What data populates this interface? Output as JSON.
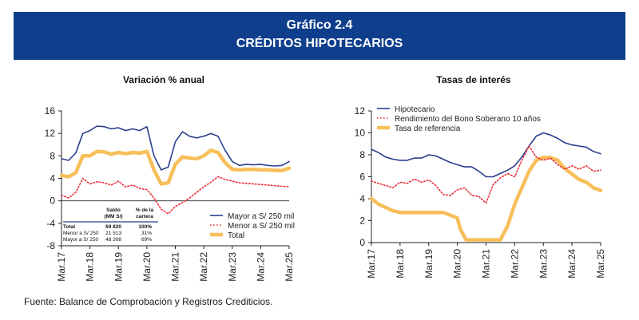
{
  "header": {
    "title_line1": "Gráfico 2.4",
    "title_line2": "CRÉDITOS HIPOTECARIOS"
  },
  "source": "Fuente: Balance de Comprobación y Registros Crediticios.",
  "colors": {
    "banner": "#0f3f8c",
    "blue": "#2a3f8f",
    "red": "#e8323c",
    "orange": "#f7bf5b"
  },
  "chart_data": [
    {
      "type": "line",
      "title": "Variación % anual",
      "xlabel": "",
      "ylabel": "",
      "ylim": [
        -8,
        16
      ],
      "yticks": [
        -8,
        -4,
        0,
        4,
        8,
        12,
        16
      ],
      "x_range": [
        2017.0,
        2025.0
      ],
      "xticks": [
        {
          "label": "Mar.17",
          "x": 2017.0
        },
        {
          "label": "Mar.18",
          "x": 2018.0
        },
        {
          "label": "Mar.19",
          "x": 2019.0
        },
        {
          "label": "Mar.20",
          "x": 2020.0
        },
        {
          "label": "Mar.21",
          "x": 2021.0
        },
        {
          "label": "Mar.22",
          "x": 2022.0
        },
        {
          "label": "Mar.23",
          "x": 2023.0
        },
        {
          "label": "Mar.24",
          "x": 2024.0
        },
        {
          "label": "Mar.25",
          "x": 2025.0
        }
      ],
      "legend_position": "bottom-right",
      "series": [
        {
          "name": "Mayor a S/ 250 mil",
          "color": "#2a3f8f",
          "style": "solid",
          "points": [
            [
              2017.0,
              7.5
            ],
            [
              2017.25,
              7.2
            ],
            [
              2017.5,
              8.5
            ],
            [
              2017.75,
              12.0
            ],
            [
              2018.0,
              12.5
            ],
            [
              2018.25,
              13.3
            ],
            [
              2018.5,
              13.2
            ],
            [
              2018.75,
              12.8
            ],
            [
              2019.0,
              13.0
            ],
            [
              2019.25,
              12.5
            ],
            [
              2019.5,
              12.8
            ],
            [
              2019.75,
              12.5
            ],
            [
              2020.0,
              13.2
            ],
            [
              2020.25,
              8.0
            ],
            [
              2020.5,
              5.5
            ],
            [
              2020.75,
              6.0
            ],
            [
              2021.0,
              10.5
            ],
            [
              2021.25,
              12.3
            ],
            [
              2021.5,
              11.5
            ],
            [
              2021.75,
              11.2
            ],
            [
              2022.0,
              11.5
            ],
            [
              2022.25,
              12.0
            ],
            [
              2022.5,
              11.5
            ],
            [
              2022.75,
              9.0
            ],
            [
              2023.0,
              7.0
            ],
            [
              2023.25,
              6.3
            ],
            [
              2023.5,
              6.5
            ],
            [
              2023.75,
              6.4
            ],
            [
              2024.0,
              6.5
            ],
            [
              2024.25,
              6.3
            ],
            [
              2024.5,
              6.2
            ],
            [
              2024.75,
              6.3
            ],
            [
              2025.0,
              7.0
            ]
          ]
        },
        {
          "name": "Menor a S/ 250 mil",
          "color": "#e8323c",
          "style": "dotted",
          "points": [
            [
              2017.0,
              1.0
            ],
            [
              2017.25,
              0.5
            ],
            [
              2017.5,
              1.5
            ],
            [
              2017.75,
              4.0
            ],
            [
              2018.0,
              3.0
            ],
            [
              2018.25,
              3.4
            ],
            [
              2018.5,
              3.2
            ],
            [
              2018.75,
              2.8
            ],
            [
              2019.0,
              3.5
            ],
            [
              2019.25,
              2.5
            ],
            [
              2019.5,
              2.8
            ],
            [
              2019.75,
              2.2
            ],
            [
              2020.0,
              2.0
            ],
            [
              2020.25,
              0.5
            ],
            [
              2020.5,
              -1.5
            ],
            [
              2020.75,
              -2.3
            ],
            [
              2021.0,
              -1.0
            ],
            [
              2021.25,
              -0.3
            ],
            [
              2021.5,
              0.5
            ],
            [
              2021.75,
              1.5
            ],
            [
              2022.0,
              2.5
            ],
            [
              2022.25,
              3.3
            ],
            [
              2022.5,
              4.3
            ],
            [
              2022.75,
              3.8
            ],
            [
              2023.0,
              3.5
            ],
            [
              2023.25,
              3.2
            ],
            [
              2023.5,
              3.1
            ],
            [
              2023.75,
              3.0
            ],
            [
              2024.0,
              2.9
            ],
            [
              2024.25,
              2.8
            ],
            [
              2024.5,
              2.7
            ],
            [
              2024.75,
              2.6
            ],
            [
              2025.0,
              2.5
            ]
          ]
        },
        {
          "name": "Total",
          "color": "#f7bf5b",
          "style": "thick",
          "points": [
            [
              2017.0,
              4.5
            ],
            [
              2017.25,
              4.3
            ],
            [
              2017.5,
              5.0
            ],
            [
              2017.75,
              8.0
            ],
            [
              2018.0,
              8.0
            ],
            [
              2018.25,
              8.8
            ],
            [
              2018.5,
              8.7
            ],
            [
              2018.75,
              8.3
            ],
            [
              2019.0,
              8.6
            ],
            [
              2019.25,
              8.4
            ],
            [
              2019.5,
              8.6
            ],
            [
              2019.75,
              8.5
            ],
            [
              2020.0,
              8.8
            ],
            [
              2020.25,
              5.5
            ],
            [
              2020.5,
              3.0
            ],
            [
              2020.75,
              3.2
            ],
            [
              2021.0,
              6.5
            ],
            [
              2021.25,
              7.8
            ],
            [
              2021.5,
              7.6
            ],
            [
              2021.75,
              7.5
            ],
            [
              2022.0,
              8.0
            ],
            [
              2022.25,
              9.0
            ],
            [
              2022.5,
              8.6
            ],
            [
              2022.75,
              6.8
            ],
            [
              2023.0,
              5.6
            ],
            [
              2023.25,
              5.5
            ],
            [
              2023.5,
              5.6
            ],
            [
              2023.75,
              5.6
            ],
            [
              2024.0,
              5.5
            ],
            [
              2024.25,
              5.5
            ],
            [
              2024.5,
              5.4
            ],
            [
              2024.75,
              5.4
            ],
            [
              2025.0,
              5.8
            ]
          ]
        }
      ],
      "inset_table": {
        "headers": [
          "",
          "Saldo\n(MM S/)",
          "% de la\ncartera"
        ],
        "rows": [
          [
            "Total",
            "69 820",
            "100%"
          ],
          [
            "Menor a S/ 250",
            "21 513",
            "31%"
          ],
          [
            "Mayor a S/ 250",
            "48 308",
            "69%"
          ]
        ]
      }
    },
    {
      "type": "line",
      "title": "Tasas de interés",
      "xlabel": "",
      "ylabel": "",
      "ylim": [
        0,
        12
      ],
      "yticks": [
        0,
        2,
        4,
        6,
        8,
        10,
        12
      ],
      "x_range": [
        2017.0,
        2025.0
      ],
      "xticks": [
        {
          "label": "Mar.17",
          "x": 2017.0
        },
        {
          "label": "Mar.18",
          "x": 2018.0
        },
        {
          "label": "Mar.19",
          "x": 2019.0
        },
        {
          "label": "Mar.20",
          "x": 2020.0
        },
        {
          "label": "Mar.21",
          "x": 2021.0
        },
        {
          "label": "Mar.22",
          "x": 2022.0
        },
        {
          "label": "Mar.23",
          "x": 2023.0
        },
        {
          "label": "Mar.24",
          "x": 2024.0
        },
        {
          "label": "Mar.25",
          "x": 2025.0
        }
      ],
      "legend_position": "top-left",
      "series": [
        {
          "name": "Hipotecario",
          "color": "#2a3f8f",
          "style": "solid",
          "points": [
            [
              2017.0,
              8.5
            ],
            [
              2017.25,
              8.2
            ],
            [
              2017.5,
              7.8
            ],
            [
              2017.75,
              7.6
            ],
            [
              2018.0,
              7.5
            ],
            [
              2018.25,
              7.5
            ],
            [
              2018.5,
              7.7
            ],
            [
              2018.75,
              7.7
            ],
            [
              2019.0,
              8.0
            ],
            [
              2019.25,
              7.9
            ],
            [
              2019.5,
              7.6
            ],
            [
              2019.75,
              7.3
            ],
            [
              2020.0,
              7.1
            ],
            [
              2020.25,
              6.9
            ],
            [
              2020.5,
              6.9
            ],
            [
              2020.75,
              6.5
            ],
            [
              2021.0,
              6.0
            ],
            [
              2021.25,
              6.0
            ],
            [
              2021.5,
              6.3
            ],
            [
              2021.75,
              6.6
            ],
            [
              2022.0,
              7.0
            ],
            [
              2022.25,
              7.8
            ],
            [
              2022.5,
              8.8
            ],
            [
              2022.75,
              9.7
            ],
            [
              2023.0,
              10.0
            ],
            [
              2023.25,
              9.8
            ],
            [
              2023.5,
              9.5
            ],
            [
              2023.75,
              9.1
            ],
            [
              2024.0,
              8.9
            ],
            [
              2024.25,
              8.8
            ],
            [
              2024.5,
              8.7
            ],
            [
              2024.75,
              8.3
            ],
            [
              2025.0,
              8.1
            ]
          ]
        },
        {
          "name": "Rendimiento del Bono Soberano 10 años",
          "color": "#e8323c",
          "style": "dotted",
          "points": [
            [
              2017.0,
              5.6
            ],
            [
              2017.25,
              5.4
            ],
            [
              2017.5,
              5.2
            ],
            [
              2017.75,
              5.0
            ],
            [
              2018.0,
              5.5
            ],
            [
              2018.25,
              5.4
            ],
            [
              2018.5,
              5.8
            ],
            [
              2018.75,
              5.5
            ],
            [
              2019.0,
              5.7
            ],
            [
              2019.25,
              5.2
            ],
            [
              2019.5,
              4.4
            ],
            [
              2019.75,
              4.3
            ],
            [
              2020.0,
              4.8
            ],
            [
              2020.25,
              5.0
            ],
            [
              2020.5,
              4.3
            ],
            [
              2020.75,
              4.2
            ],
            [
              2021.0,
              3.6
            ],
            [
              2021.25,
              5.3
            ],
            [
              2021.5,
              5.9
            ],
            [
              2021.75,
              6.3
            ],
            [
              2022.0,
              6.0
            ],
            [
              2022.25,
              7.5
            ],
            [
              2022.5,
              8.8
            ],
            [
              2022.75,
              7.8
            ],
            [
              2023.0,
              7.5
            ],
            [
              2023.25,
              7.7
            ],
            [
              2023.5,
              7.1
            ],
            [
              2023.75,
              6.7
            ],
            [
              2024.0,
              7.0
            ],
            [
              2024.25,
              6.7
            ],
            [
              2024.5,
              7.0
            ],
            [
              2024.75,
              6.5
            ],
            [
              2025.0,
              6.6
            ]
          ]
        },
        {
          "name": "Tasa de referencia",
          "color": "#f7bf5b",
          "style": "thick",
          "points": [
            [
              2017.0,
              4.0
            ],
            [
              2017.25,
              3.5
            ],
            [
              2017.5,
              3.2
            ],
            [
              2017.75,
              2.9
            ],
            [
              2018.0,
              2.75
            ],
            [
              2018.5,
              2.75
            ],
            [
              2019.0,
              2.75
            ],
            [
              2019.5,
              2.75
            ],
            [
              2019.75,
              2.5
            ],
            [
              2020.0,
              2.25
            ],
            [
              2020.1,
              1.25
            ],
            [
              2020.3,
              0.25
            ],
            [
              2021.0,
              0.25
            ],
            [
              2021.5,
              0.25
            ],
            [
              2021.75,
              1.5
            ],
            [
              2022.0,
              3.5
            ],
            [
              2022.25,
              5.0
            ],
            [
              2022.5,
              6.5
            ],
            [
              2022.75,
              7.5
            ],
            [
              2023.0,
              7.75
            ],
            [
              2023.25,
              7.75
            ],
            [
              2023.5,
              7.5
            ],
            [
              2023.75,
              6.75
            ],
            [
              2024.0,
              6.25
            ],
            [
              2024.25,
              5.75
            ],
            [
              2024.5,
              5.5
            ],
            [
              2024.75,
              5.0
            ],
            [
              2025.0,
              4.75
            ]
          ]
        }
      ]
    }
  ]
}
